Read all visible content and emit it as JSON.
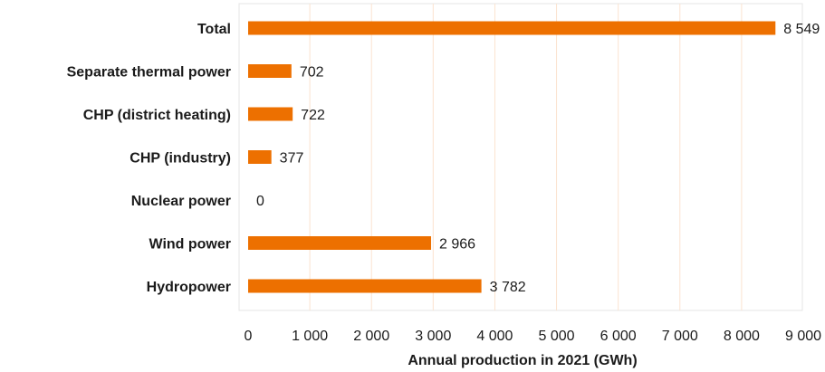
{
  "chart_data": {
    "type": "bar",
    "orientation": "horizontal",
    "categories": [
      "Total",
      "Separate thermal power",
      "CHP (district heating)",
      "CHP (industry)",
      "Nuclear power",
      "Wind power",
      "Hydropower"
    ],
    "values": [
      8549,
      702,
      722,
      377,
      0,
      2966,
      3782
    ],
    "value_labels": [
      "8 549",
      "702",
      "722",
      "377",
      "0",
      "2 966",
      "3 782"
    ],
    "title": "",
    "xlabel": "Annual production in 2021 (GWh)",
    "ylabel": "",
    "xlim": [
      0,
      9000
    ],
    "x_ticks": [
      0,
      1000,
      2000,
      3000,
      4000,
      5000,
      6000,
      7000,
      8000,
      9000
    ],
    "x_tick_labels": [
      "0",
      "1 000",
      "2 000",
      "3 000",
      "4 000",
      "5 000",
      "6 000",
      "7 000",
      "8 000",
      "9 000"
    ],
    "grid": "vertical",
    "legend": "none",
    "bar_color": "#ED7000",
    "grid_color": "#FBE3D0",
    "border_color": "#E6E6E6"
  }
}
